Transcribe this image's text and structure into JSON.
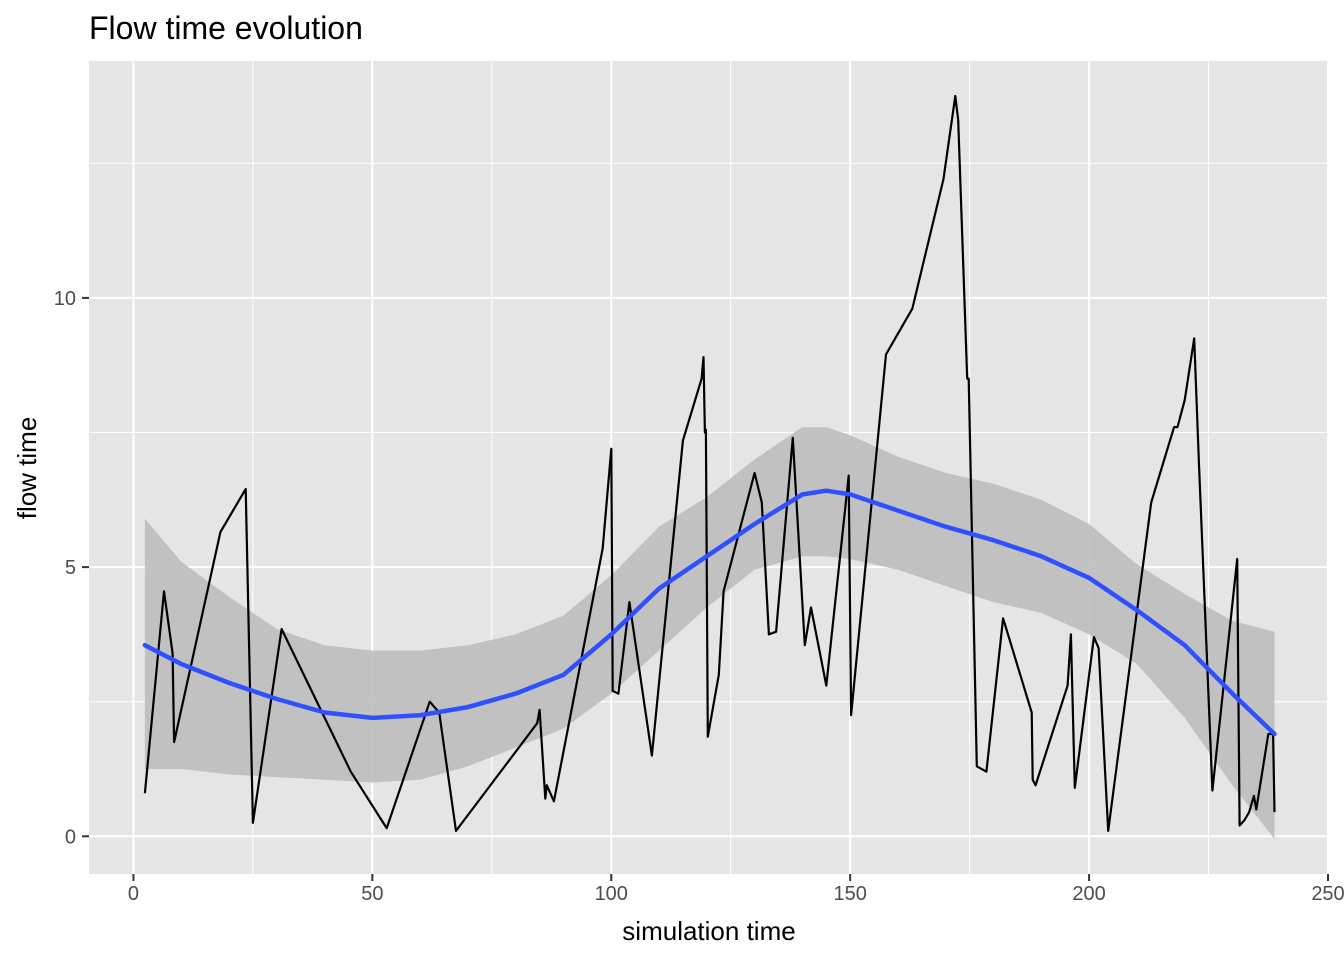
{
  "chart_data": {
    "type": "line",
    "title": "Flow time evolution",
    "xlabel": "simulation time",
    "ylabel": "flow time",
    "xlim": [
      -9.3,
      250
    ],
    "ylim": [
      -0.7,
      14.4
    ],
    "x_ticks": [
      0,
      50,
      100,
      150,
      200,
      250
    ],
    "y_ticks": [
      0,
      5,
      10
    ],
    "grid": true,
    "legend": "none",
    "colors": {
      "panel_background": "#e5e5e5",
      "grid": "#ffffff",
      "raw_line": "#000000",
      "smooth_line": "#3050ff",
      "confidence_band": "#bdbdbd"
    },
    "series": [
      {
        "values": [
          [
            2.4,
            0.8
          ],
          [
            6.4,
            4.55
          ],
          [
            8.2,
            3.4
          ],
          [
            8.5,
            1.75
          ],
          [
            18.2,
            5.65
          ],
          [
            23.5,
            6.45
          ],
          [
            25.0,
            0.25
          ],
          [
            31.0,
            3.85
          ],
          [
            45.5,
            1.2
          ],
          [
            53.0,
            0.15
          ],
          [
            62.0,
            2.5
          ],
          [
            64.0,
            2.3
          ],
          [
            67.5,
            0.1
          ],
          [
            84.5,
            2.1
          ],
          [
            85.0,
            2.35
          ],
          [
            86.2,
            0.7
          ],
          [
            86.5,
            0.95
          ],
          [
            88.0,
            0.65
          ],
          [
            98.2,
            5.35
          ],
          [
            100.0,
            7.2
          ],
          [
            100.3,
            2.7
          ],
          [
            101.5,
            2.65
          ],
          [
            103.8,
            4.35
          ],
          [
            108.5,
            1.5
          ],
          [
            115.0,
            7.35
          ],
          [
            118.9,
            8.5
          ],
          [
            119.3,
            8.9
          ],
          [
            119.6,
            7.5
          ],
          [
            119.8,
            7.55
          ],
          [
            120.2,
            1.85
          ],
          [
            122.5,
            3.0
          ],
          [
            123.5,
            4.55
          ],
          [
            130.0,
            6.75
          ],
          [
            131.5,
            6.2
          ],
          [
            133.0,
            3.75
          ],
          [
            134.5,
            3.8
          ],
          [
            138.0,
            7.4
          ],
          [
            140.5,
            3.55
          ],
          [
            141.8,
            4.25
          ],
          [
            145.0,
            2.8
          ],
          [
            149.7,
            6.7
          ],
          [
            150.2,
            2.25
          ],
          [
            157.5,
            8.95
          ],
          [
            163.0,
            9.8
          ],
          [
            169.5,
            12.2
          ],
          [
            172.0,
            13.75
          ],
          [
            172.6,
            13.3
          ],
          [
            174.5,
            8.5
          ],
          [
            174.8,
            8.5
          ],
          [
            176.5,
            1.3
          ],
          [
            178.5,
            1.2
          ],
          [
            182.0,
            4.05
          ],
          [
            188.0,
            2.3
          ],
          [
            188.2,
            1.05
          ],
          [
            188.8,
            0.95
          ],
          [
            195.5,
            2.8
          ],
          [
            196.2,
            3.75
          ],
          [
            197.0,
            0.9
          ],
          [
            201.0,
            3.7
          ],
          [
            202.0,
            3.5
          ],
          [
            204.0,
            0.1
          ],
          [
            213.0,
            6.2
          ],
          [
            217.8,
            7.6
          ],
          [
            218.5,
            7.6
          ],
          [
            220.0,
            8.1
          ],
          [
            222.0,
            9.25
          ],
          [
            223.0,
            6.9
          ],
          [
            225.8,
            0.85
          ],
          [
            231.0,
            5.15
          ],
          [
            231.5,
            0.2
          ],
          [
            232.5,
            0.3
          ],
          [
            233.5,
            0.45
          ],
          [
            234.5,
            0.75
          ],
          [
            235.0,
            0.5
          ],
          [
            237.5,
            1.9
          ],
          [
            238.5,
            1.9
          ],
          [
            238.8,
            0.45
          ]
        ]
      },
      {
        "values": [
          [
            2.4,
            3.55
          ],
          [
            10,
            3.2
          ],
          [
            20,
            2.85
          ],
          [
            30,
            2.55
          ],
          [
            40,
            2.3
          ],
          [
            50,
            2.2
          ],
          [
            60,
            2.25
          ],
          [
            70,
            2.4
          ],
          [
            80,
            2.65
          ],
          [
            90,
            3.0
          ],
          [
            100,
            3.75
          ],
          [
            110,
            4.6
          ],
          [
            120,
            5.2
          ],
          [
            130,
            5.8
          ],
          [
            140,
            6.35
          ],
          [
            145,
            6.42
          ],
          [
            150,
            6.35
          ],
          [
            160,
            6.05
          ],
          [
            170,
            5.75
          ],
          [
            180,
            5.5
          ],
          [
            190,
            5.2
          ],
          [
            200,
            4.8
          ],
          [
            210,
            4.2
          ],
          [
            220,
            3.55
          ],
          [
            230,
            2.65
          ],
          [
            238.8,
            1.9
          ]
        ]
      }
    ],
    "confidence_band": [
      [
        2.4,
        1.25,
        5.9
      ],
      [
        10,
        1.25,
        5.1
      ],
      [
        20,
        1.15,
        4.45
      ],
      [
        30,
        1.1,
        3.85
      ],
      [
        40,
        1.05,
        3.55
      ],
      [
        50,
        1.0,
        3.45
      ],
      [
        60,
        1.05,
        3.45
      ],
      [
        70,
        1.3,
        3.55
      ],
      [
        80,
        1.65,
        3.75
      ],
      [
        90,
        2.0,
        4.1
      ],
      [
        100,
        2.65,
        4.85
      ],
      [
        110,
        3.45,
        5.75
      ],
      [
        120,
        4.25,
        6.3
      ],
      [
        130,
        4.95,
        7.0
      ],
      [
        140,
        5.2,
        7.6
      ],
      [
        145,
        5.2,
        7.6
      ],
      [
        150,
        5.15,
        7.45
      ],
      [
        160,
        4.95,
        7.05
      ],
      [
        170,
        4.65,
        6.75
      ],
      [
        180,
        4.35,
        6.55
      ],
      [
        190,
        4.15,
        6.25
      ],
      [
        200,
        3.75,
        5.8
      ],
      [
        210,
        3.2,
        5.05
      ],
      [
        220,
        2.2,
        4.5
      ],
      [
        230,
        0.95,
        4.0
      ],
      [
        238.8,
        -0.05,
        3.8
      ]
    ]
  }
}
